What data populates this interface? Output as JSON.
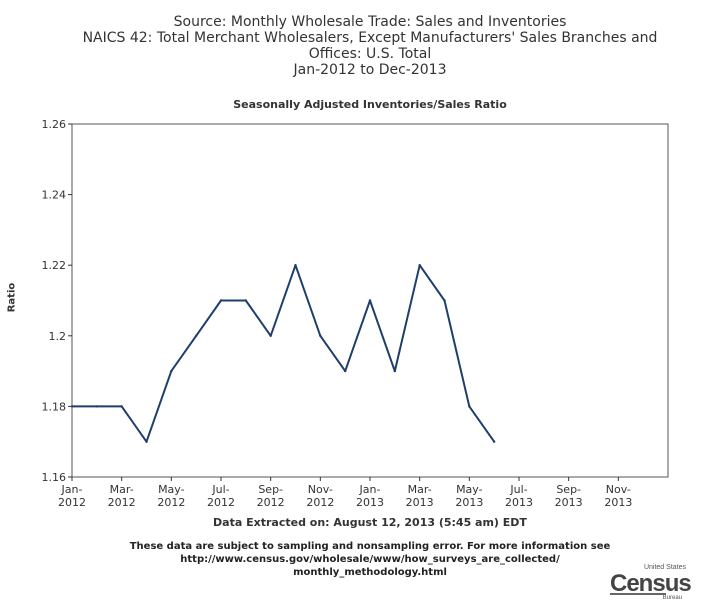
{
  "header": {
    "line1": "Source: Monthly Wholesale Trade: Sales and Inventories",
    "line2": "NAICS 42: Total Merchant Wholesalers, Except Manufacturers' Sales Branches and",
    "line3": "Offices: U.S. Total",
    "line4": "Jan-2012 to Dec-2013"
  },
  "footer": {
    "extracted": "Data Extracted on: August 12, 2013 (5:45 am) EDT",
    "note_line1": "These data are subject to sampling and nonsampling error. For more information see",
    "note_line2": "http://www.census.gov/wholesale/www/how_surveys_are_collected/",
    "note_line3": "monthly_methodology.html"
  },
  "logo": {
    "top": "United States",
    "main": "Census",
    "bottom": "Bureau"
  },
  "colors": {
    "line": "#1f3f6b",
    "axis": "#333333",
    "frame": "#555555"
  },
  "chart_data": {
    "type": "line",
    "title": "Seasonally Adjusted Inventories/Sales Ratio",
    "ylabel": "Ratio",
    "xlabel": "",
    "ylim": [
      1.16,
      1.26
    ],
    "yticks": [
      "1.16",
      "1.18",
      "1.2",
      "1.22",
      "1.24",
      "1.26"
    ],
    "grid": false,
    "categories": [
      "Jan-2012",
      "Feb-2012",
      "Mar-2012",
      "Apr-2012",
      "May-2012",
      "Jun-2012",
      "Jul-2012",
      "Aug-2012",
      "Sep-2012",
      "Oct-2012",
      "Nov-2012",
      "Dec-2012",
      "Jan-2013",
      "Feb-2013",
      "Mar-2013",
      "Apr-2013",
      "May-2013",
      "Jun-2013",
      "Jul-2013",
      "Aug-2013",
      "Sep-2013",
      "Oct-2013",
      "Nov-2013",
      "Dec-2013"
    ],
    "xtick_labels": [
      {
        "month": "Jan-",
        "year": "2012"
      },
      {
        "month": "Mar-",
        "year": "2012"
      },
      {
        "month": "May-",
        "year": "2012"
      },
      {
        "month": "Jul-",
        "year": "2012"
      },
      {
        "month": "Sep-",
        "year": "2012"
      },
      {
        "month": "Nov-",
        "year": "2012"
      },
      {
        "month": "Jan-",
        "year": "2013"
      },
      {
        "month": "Mar-",
        "year": "2013"
      },
      {
        "month": "May-",
        "year": "2013"
      },
      {
        "month": "Jul-",
        "year": "2013"
      },
      {
        "month": "Sep-",
        "year": "2013"
      },
      {
        "month": "Nov-",
        "year": "2013"
      }
    ],
    "series": [
      {
        "values": [
          1.18,
          1.18,
          1.18,
          1.17,
          1.19,
          1.2,
          1.21,
          1.21,
          1.2,
          1.22,
          1.2,
          1.19,
          1.21,
          1.19,
          1.22,
          1.21,
          1.18,
          1.17,
          null,
          null,
          null,
          null,
          null,
          null
        ]
      }
    ]
  }
}
